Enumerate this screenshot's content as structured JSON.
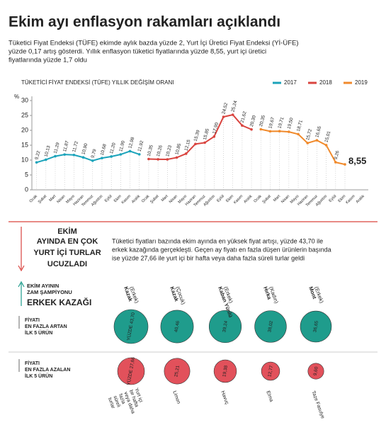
{
  "header": {
    "title": "Ekim ayı enflasyon rakamları açıklandı",
    "subtitle": [
      "Tüketici Fiyat Endeksi (TÜFE) ekimde aylık bazda yüzde 2, Yurt İçi Üretici Fiyat Endeksi (Yİ-ÜFE)",
      "yüzde 0,17 artış gösterdi. Yıllık enflasyon tüketici fiyatlarında yüzde 8,55, yurt içi üretici",
      "fiyatlarında yüzde 1,7 oldu"
    ]
  },
  "section": {
    "headline": [
      "EKİM",
      "AYINDA EN ÇOK",
      "YURT İÇİ TURLAR",
      "UCUZLADI"
    ],
    "text": [
      "Tüketici fiyatları bazında ekim ayında en yüksek fiyat artışı, yüzde 43,70 ile",
      "erkek kazağında gerçekleşti. Geçen ay fiyatı en fazla düşen ürünlerin başında",
      "ise yüzde 27,66 ile yurt içi bir hafta veya daha fazla süreli turlar geldi"
    ],
    "champion_label": [
      "EKİM AYININ",
      "ZAM ŞAMPİYONU"
    ],
    "champion": "ERKEK KAZAĞI"
  },
  "chart_data": [
    {
      "type": "line",
      "title": "TÜKETİCİ FİYAT ENDEKSİ (TÜFE) YILLIK DEĞİŞİM ORANI",
      "y_unit": "%",
      "categories": [
        "Ocak",
        "Şubat",
        "Mart",
        "Nisan",
        "Mayıs",
        "Haziran",
        "Temmuz",
        "Ağustos",
        "Eylül",
        "Ekim",
        "Kasım",
        "Aralık",
        "Ocak",
        "Şubat",
        "Mart",
        "Nisan",
        "Mayıs",
        "Haziran",
        "Temmuz",
        "Ağustos",
        "Eylül",
        "Ekim",
        "Kasım",
        "Aralık",
        "Ocak",
        "Şubat",
        "Mart",
        "Nisan",
        "Mayıs",
        "Haziran",
        "Temmuz",
        "Ağustos",
        "Eylül",
        "Ekim",
        "Kasım",
        "Aralık"
      ],
      "ylim": [
        0,
        30
      ],
      "yticks": [
        0,
        5,
        10,
        15,
        20,
        25,
        30
      ],
      "legend": "top-right",
      "series": [
        {
          "name": "2017",
          "color": "#1ba3ba",
          "values": [
            9.22,
            10.13,
            11.29,
            11.87,
            11.72,
            10.9,
            9.79,
            10.68,
            11.2,
            11.9,
            12.98,
            11.92,
            null,
            null,
            null,
            null,
            null,
            null,
            null,
            null,
            null,
            null,
            null,
            null,
            null,
            null,
            null,
            null,
            null,
            null,
            null,
            null,
            null,
            null,
            null,
            null
          ],
          "value_labels": [
            "9,22",
            "10,13",
            "11,29",
            "11,87",
            "11,72",
            "10,90",
            "9,79",
            "10,68",
            "11,20",
            "11,90",
            "12,98",
            "11,92",
            null,
            null,
            null,
            null,
            null,
            null,
            null,
            null,
            null,
            null,
            null,
            null,
            null,
            null,
            null,
            null,
            null,
            null,
            null,
            null,
            null,
            null,
            null,
            null
          ]
        },
        {
          "name": "2018",
          "color": "#d9443f",
          "values": [
            null,
            null,
            null,
            null,
            null,
            null,
            null,
            null,
            null,
            null,
            null,
            null,
            10.35,
            10.26,
            10.23,
            10.85,
            12.15,
            15.39,
            15.85,
            17.9,
            24.52,
            25.24,
            21.62,
            20.3,
            null,
            null,
            null,
            null,
            null,
            null,
            null,
            null,
            null,
            null,
            null,
            null
          ],
          "value_labels": [
            null,
            null,
            null,
            null,
            null,
            null,
            null,
            null,
            null,
            null,
            null,
            null,
            "10,35",
            "10,26",
            "10,23",
            "10,85",
            "12,15",
            "15,39",
            "15,85",
            "17,90",
            "24,52",
            "25,24",
            "21,62",
            "20,30",
            null,
            null,
            null,
            null,
            null,
            null,
            null,
            null,
            null,
            null,
            null,
            null
          ]
        },
        {
          "name": "2019",
          "color": "#f08a2c",
          "values": [
            null,
            null,
            null,
            null,
            null,
            null,
            null,
            null,
            null,
            null,
            null,
            null,
            null,
            null,
            null,
            null,
            null,
            null,
            null,
            null,
            null,
            null,
            null,
            null,
            20.35,
            19.67,
            19.71,
            19.5,
            18.71,
            15.72,
            16.65,
            15.01,
            9.26,
            8.55,
            null,
            null
          ],
          "value_labels": [
            null,
            null,
            null,
            null,
            null,
            null,
            null,
            null,
            null,
            null,
            null,
            null,
            null,
            null,
            null,
            null,
            null,
            null,
            null,
            null,
            null,
            null,
            null,
            null,
            "20,35",
            "19,67",
            "19,71",
            "19,50",
            "18,71",
            "15,72",
            "16,65",
            "15,01",
            "9,26",
            "8,55",
            null,
            null
          ]
        }
      ]
    },
    {
      "type": "bubble",
      "title": [
        "FİYATI",
        "EN FAZLA ARTAN",
        "İLK 5 ÜRÜN"
      ],
      "color": "#1f9c8c",
      "categories": [
        "Kazak",
        "Kazak",
        "Kaban Yünlü",
        "Hırka",
        "Mont"
      ],
      "sublabels": [
        "(Erkek)",
        "(Çocuk)",
        "(Erkek)",
        "(Kadın)",
        "(Erkek)"
      ],
      "values": [
        43.7,
        40.46,
        39.24,
        38.02,
        36.65
      ],
      "value_labels": [
        "YÜZDE 43,70",
        "40,46",
        "39,24",
        "38,02",
        "36,65"
      ]
    },
    {
      "type": "bubble",
      "title": [
        "FİYATI",
        "EN FAZLA AZALAN",
        "İLK 5 ÜRÜN"
      ],
      "color": "#e2515b",
      "categories": [
        "Yurt içi bir hafta veya daha fazla süreli turlar",
        "Limon",
        "Havuç",
        "Elma",
        "Taze Fasulye"
      ],
      "values": [
        27.66,
        25.21,
        19.38,
        12.77,
        9.6
      ],
      "value_labels": [
        "YÜZDE 27,66",
        "25,21",
        "19,38",
        "12,77",
        "9,60"
      ]
    }
  ]
}
